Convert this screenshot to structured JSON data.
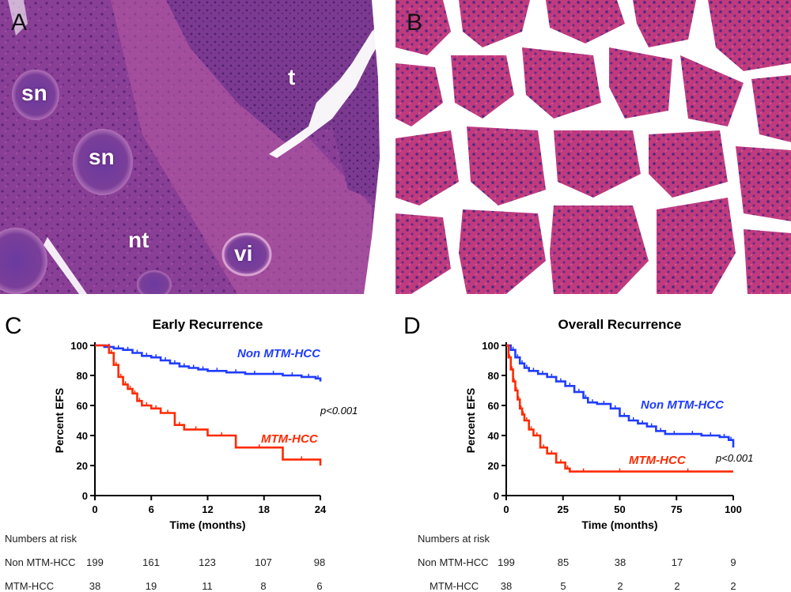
{
  "panels": {
    "A": {
      "letter": "A",
      "labels": {
        "t": "t",
        "sn1": "sn",
        "sn2": "sn",
        "nt": "nt",
        "vi": "vi"
      }
    },
    "B": {
      "letter": "B"
    },
    "C": {
      "letter": "C"
    },
    "D": {
      "letter": "D"
    }
  },
  "colors": {
    "tissue_dark": "#6e2f86",
    "tissue_mid": "#a04ba0",
    "tissue_pink": "#c2458e",
    "non_mtm": "#1f3cff",
    "mtm": "#ff2a00"
  },
  "chart_data": [
    {
      "type": "line",
      "title": "Early  Recurrence",
      "xlabel": "Time (months)",
      "ylabel": "Percent EFS",
      "xlim": [
        0,
        24
      ],
      "ylim": [
        0,
        100
      ],
      "xticks": [
        0,
        6,
        12,
        18,
        24
      ],
      "yticks": [
        0,
        20,
        40,
        60,
        80,
        100
      ],
      "pvalue": "p<0.001",
      "series": [
        {
          "name": "Non MTM-HCC",
          "color": "#1f3cff",
          "x": [
            0,
            1,
            2,
            3,
            4,
            5,
            6,
            7,
            8,
            9,
            10,
            11,
            12,
            14,
            16,
            18,
            20,
            22,
            23.5,
            24
          ],
          "y": [
            100,
            99,
            98,
            97,
            95,
            93,
            92,
            90,
            88,
            86,
            85,
            84,
            83,
            82,
            81,
            81,
            80,
            79,
            78,
            76
          ]
        },
        {
          "name": "MTM-HCC",
          "color": "#ff2a00",
          "x": [
            0,
            1.5,
            2,
            2.5,
            3,
            3.5,
            4,
            4.5,
            5,
            6,
            7,
            8.5,
            9.5,
            12,
            15,
            20,
            24
          ],
          "y": [
            100,
            95,
            87,
            79,
            74,
            71,
            68,
            63,
            60,
            58,
            55,
            47,
            44,
            40,
            32,
            24,
            20
          ]
        }
      ],
      "risk_table": {
        "title": "Numbers at risk",
        "rows": [
          {
            "label": "Non MTM-HCC",
            "values": [
              "199",
              "161",
              "123",
              "107",
              "98"
            ]
          },
          {
            "label": "MTM-HCC",
            "values": [
              "38",
              "19",
              "11",
              "8",
              "6"
            ]
          }
        ]
      }
    },
    {
      "type": "line",
      "title": "Overall Recurrence",
      "xlabel": "Time (months)",
      "ylabel": "Percent EFS",
      "xlim": [
        0,
        100
      ],
      "ylim": [
        0,
        100
      ],
      "xticks": [
        0,
        25,
        50,
        75,
        100
      ],
      "yticks": [
        0,
        20,
        40,
        60,
        80,
        100
      ],
      "pvalue": "p<0.001",
      "series": [
        {
          "name": "Non MTM-HCC",
          "color": "#1f3cff",
          "x": [
            0,
            2,
            4,
            6,
            8,
            10,
            14,
            18,
            22,
            26,
            30,
            34,
            36,
            40,
            46,
            50,
            54,
            58,
            62,
            66,
            70,
            78,
            86,
            94,
            98,
            100
          ],
          "y": [
            100,
            97,
            92,
            88,
            85,
            83,
            81,
            79,
            76,
            73,
            69,
            65,
            62,
            61,
            58,
            53,
            50,
            48,
            46,
            43,
            41,
            41,
            40,
            39,
            37,
            32
          ]
        },
        {
          "name": "MTM-HCC",
          "color": "#ff2a00",
          "x": [
            0,
            1,
            2,
            3,
            4,
            5,
            6,
            7,
            8,
            10,
            12,
            15,
            18,
            22,
            26,
            28,
            40,
            60,
            100
          ],
          "y": [
            100,
            92,
            84,
            76,
            70,
            64,
            58,
            54,
            50,
            44,
            40,
            32,
            28,
            22,
            18,
            16,
            16,
            16,
            16
          ]
        }
      ],
      "risk_table": {
        "title": "Numbers at risk",
        "rows": [
          {
            "label": "Non MTM-HCC",
            "values": [
              "199",
              "85",
              "38",
              "17",
              "9"
            ]
          },
          {
            "label": "MTM-HCC",
            "values": [
              "38",
              "5",
              "2",
              "2",
              "2"
            ]
          }
        ]
      }
    }
  ]
}
